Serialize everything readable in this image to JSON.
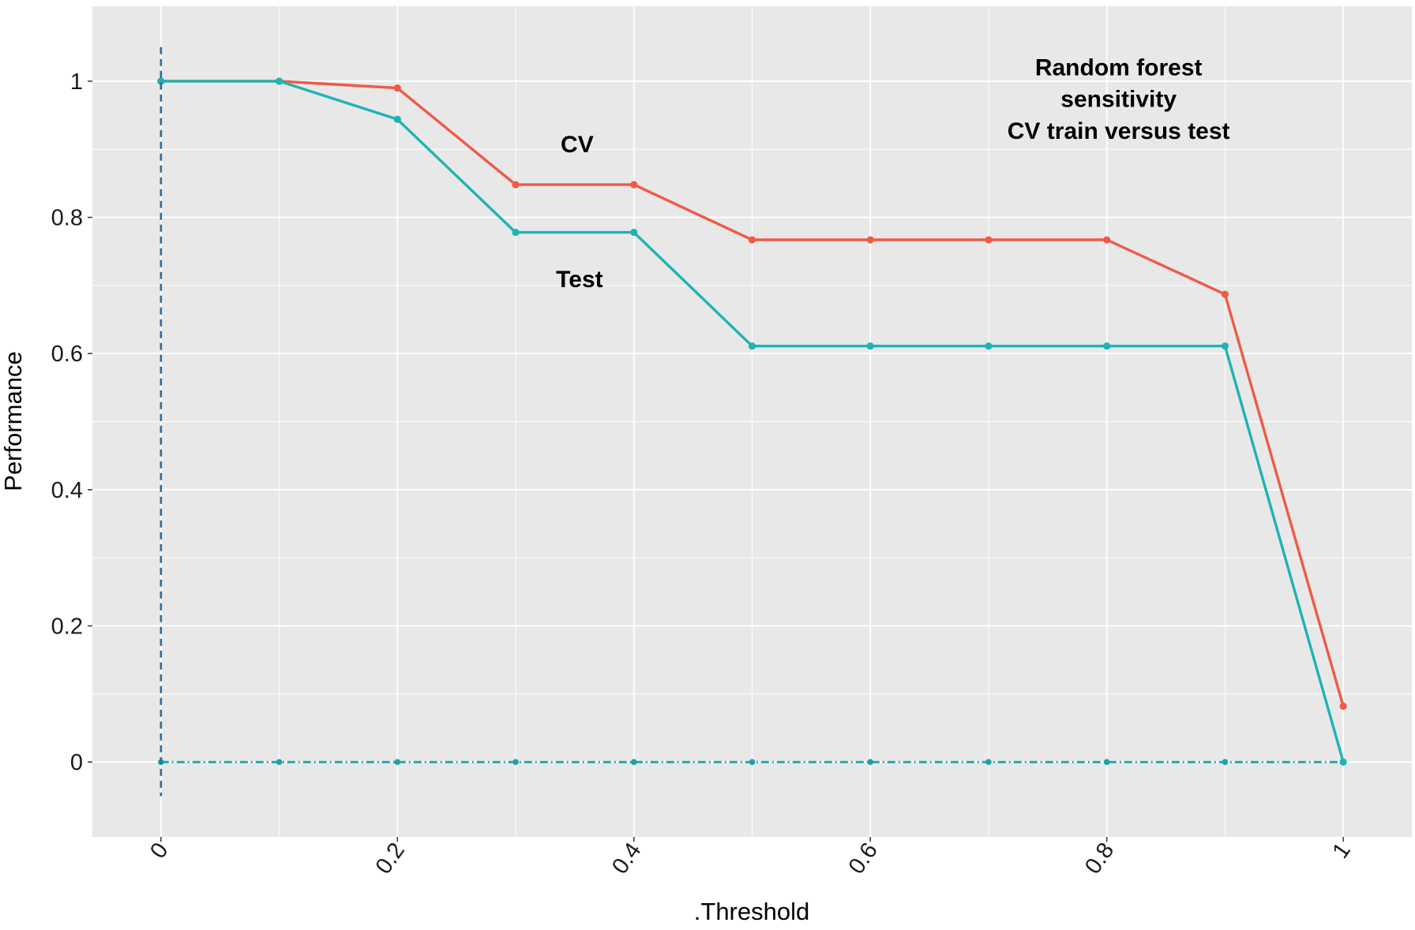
{
  "chart_data": {
    "type": "line",
    "title": "",
    "xlabel": ".Threshold",
    "ylabel": "Performance",
    "xlim": [
      -0.058,
      1.058
    ],
    "ylim": [
      -0.11,
      1.11
    ],
    "xticks": [
      0,
      0.2,
      0.4,
      0.6,
      0.8,
      1
    ],
    "xtick_labels": [
      "0",
      "0.2",
      "0.4",
      "0.6",
      "0.8",
      "1"
    ],
    "yticks": [
      0,
      0.2,
      0.4,
      0.6,
      0.8,
      1
    ],
    "ytick_labels": [
      "0",
      "0.2",
      "0.4",
      "0.6",
      "0.8",
      "1"
    ],
    "grid": true,
    "legend": "none",
    "x": [
      0,
      0.1,
      0.2,
      0.3,
      0.4,
      0.5,
      0.6,
      0.7,
      0.8,
      0.9,
      1.0
    ],
    "series": [
      {
        "key": "cv",
        "color": "#ef5a47",
        "style": "solid",
        "values": [
          1.0,
          1.0,
          0.99,
          0.848,
          0.848,
          0.767,
          0.767,
          0.767,
          0.767,
          0.687,
          0.082
        ]
      },
      {
        "key": "test",
        "color": "#1fb3b4",
        "style": "solid",
        "values": [
          1.0,
          1.0,
          0.944,
          0.778,
          0.778,
          0.611,
          0.611,
          0.611,
          0.611,
          0.611,
          0.0
        ]
      },
      {
        "key": "baseline",
        "color": "#1aa3a6",
        "style": "dashdot",
        "values": [
          0,
          0,
          0,
          0,
          0,
          0,
          0,
          0,
          0,
          0,
          0
        ]
      }
    ],
    "vline": {
      "x": 0,
      "y_range": [
        -0.05,
        1.05
      ],
      "color": "#2f6b9a",
      "style": "dashed"
    },
    "annotations": [
      {
        "key": "cv-label",
        "text": "CV",
        "x": 0.352,
        "y": 0.907
      },
      {
        "key": "test-label",
        "text": "Test",
        "x": 0.354,
        "y": 0.709
      },
      {
        "key": "title-line-1",
        "text": "Random forest",
        "x": 0.81,
        "y": 1.02
      },
      {
        "key": "title-line-2",
        "text": "sensitivity",
        "x": 0.81,
        "y": 0.974
      },
      {
        "key": "title-line-3",
        "text": "CV train versus test",
        "x": 0.81,
        "y": 0.927
      }
    ],
    "panel_color": "#e8e8e8",
    "grid_color": "#ffffff",
    "tick_color": "#333333"
  }
}
